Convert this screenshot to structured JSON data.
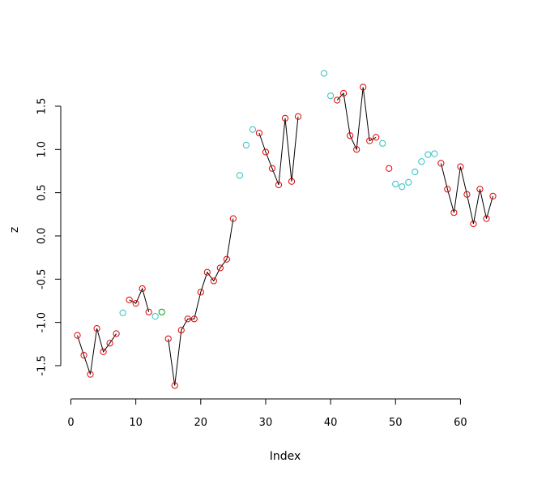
{
  "chart_data": {
    "type": "line",
    "xlabel": "Index",
    "ylabel": "z",
    "xlim": [
      1,
      65
    ],
    "ylim": [
      -1.74,
      1.88
    ],
    "x_ticks": [
      0,
      10,
      20,
      30,
      40,
      50,
      60
    ],
    "y_ticks": [
      -1.5,
      -1.0,
      -0.5,
      0.0,
      0.5,
      1.0,
      1.5
    ],
    "x_tick_labels": [
      "0",
      "10",
      "20",
      "30",
      "40",
      "50",
      "60"
    ],
    "y_tick_labels": [
      "-1.5",
      "-1.0",
      "-0.5",
      "0.0",
      "0.5",
      "1.0",
      "1.5"
    ],
    "grid": false,
    "colors": {
      "red": "#DF0000",
      "cyan": "#2DC2C2",
      "green": "#00A000",
      "line": "#000000"
    },
    "points": [
      {
        "x": 1,
        "y": -1.15,
        "c": "red"
      },
      {
        "x": 2,
        "y": -1.38,
        "c": "red"
      },
      {
        "x": 3,
        "y": -1.6,
        "c": "red"
      },
      {
        "x": 4,
        "y": -1.07,
        "c": "red"
      },
      {
        "x": 5,
        "y": -1.34,
        "c": "red"
      },
      {
        "x": 6,
        "y": -1.24,
        "c": "red"
      },
      {
        "x": 7,
        "y": -1.13,
        "c": "red"
      },
      {
        "x": 8,
        "y": -0.89,
        "c": "cyan"
      },
      {
        "x": 9,
        "y": -0.74,
        "c": "red"
      },
      {
        "x": 10,
        "y": -0.78,
        "c": "red"
      },
      {
        "x": 11,
        "y": -0.61,
        "c": "red"
      },
      {
        "x": 12,
        "y": -0.88,
        "c": "red"
      },
      {
        "x": 13,
        "y": -0.93,
        "c": "cyan"
      },
      {
        "x": 14,
        "y": -0.88,
        "c": "green"
      },
      {
        "x": 15,
        "y": -1.19,
        "c": "red"
      },
      {
        "x": 16,
        "y": -1.73,
        "c": "red"
      },
      {
        "x": 17,
        "y": -1.09,
        "c": "red"
      },
      {
        "x": 18,
        "y": -0.96,
        "c": "red"
      },
      {
        "x": 19,
        "y": -0.96,
        "c": "red"
      },
      {
        "x": 20,
        "y": -0.65,
        "c": "red"
      },
      {
        "x": 21,
        "y": -0.42,
        "c": "red"
      },
      {
        "x": 22,
        "y": -0.52,
        "c": "red"
      },
      {
        "x": 23,
        "y": -0.37,
        "c": "red"
      },
      {
        "x": 24,
        "y": -0.27,
        "c": "red"
      },
      {
        "x": 25,
        "y": 0.2,
        "c": "red"
      },
      {
        "x": 26,
        "y": 0.7,
        "c": "cyan"
      },
      {
        "x": 27,
        "y": 1.05,
        "c": "cyan"
      },
      {
        "x": 28,
        "y": 1.23,
        "c": "cyan"
      },
      {
        "x": 29,
        "y": 1.19,
        "c": "red"
      },
      {
        "x": 30,
        "y": 0.97,
        "c": "red"
      },
      {
        "x": 31,
        "y": 0.78,
        "c": "red"
      },
      {
        "x": 32,
        "y": 0.59,
        "c": "red"
      },
      {
        "x": 33,
        "y": 1.36,
        "c": "red"
      },
      {
        "x": 34,
        "y": 0.63,
        "c": "red"
      },
      {
        "x": 35,
        "y": 1.38,
        "c": "red"
      },
      {
        "x": 39,
        "y": 1.88,
        "c": "cyan"
      },
      {
        "x": 40,
        "y": 1.62,
        "c": "cyan"
      },
      {
        "x": 41,
        "y": 1.57,
        "c": "red"
      },
      {
        "x": 42,
        "y": 1.65,
        "c": "red"
      },
      {
        "x": 43,
        "y": 1.16,
        "c": "red"
      },
      {
        "x": 44,
        "y": 1.0,
        "c": "red"
      },
      {
        "x": 45,
        "y": 1.72,
        "c": "red"
      },
      {
        "x": 46,
        "y": 1.1,
        "c": "red"
      },
      {
        "x": 47,
        "y": 1.14,
        "c": "red"
      },
      {
        "x": 48,
        "y": 1.07,
        "c": "cyan"
      },
      {
        "x": 49,
        "y": 0.78,
        "c": "red"
      },
      {
        "x": 50,
        "y": 0.6,
        "c": "cyan"
      },
      {
        "x": 51,
        "y": 0.57,
        "c": "cyan"
      },
      {
        "x": 52,
        "y": 0.62,
        "c": "cyan"
      },
      {
        "x": 53,
        "y": 0.74,
        "c": "cyan"
      },
      {
        "x": 54,
        "y": 0.86,
        "c": "cyan"
      },
      {
        "x": 55,
        "y": 0.94,
        "c": "cyan"
      },
      {
        "x": 56,
        "y": 0.95,
        "c": "cyan"
      },
      {
        "x": 57,
        "y": 0.84,
        "c": "red"
      },
      {
        "x": 58,
        "y": 0.54,
        "c": "red"
      },
      {
        "x": 59,
        "y": 0.27,
        "c": "red"
      },
      {
        "x": 60,
        "y": 0.8,
        "c": "red"
      },
      {
        "x": 61,
        "y": 0.48,
        "c": "red"
      },
      {
        "x": 62,
        "y": 0.14,
        "c": "red"
      },
      {
        "x": 63,
        "y": 0.54,
        "c": "red"
      },
      {
        "x": 64,
        "y": 0.2,
        "c": "red"
      },
      {
        "x": 65,
        "y": 0.46,
        "c": "red"
      }
    ],
    "line_segments": [
      [
        1,
        7
      ],
      [
        9,
        12
      ],
      [
        15,
        25
      ],
      [
        29,
        35
      ],
      [
        41,
        47
      ],
      [
        57,
        65
      ]
    ]
  }
}
